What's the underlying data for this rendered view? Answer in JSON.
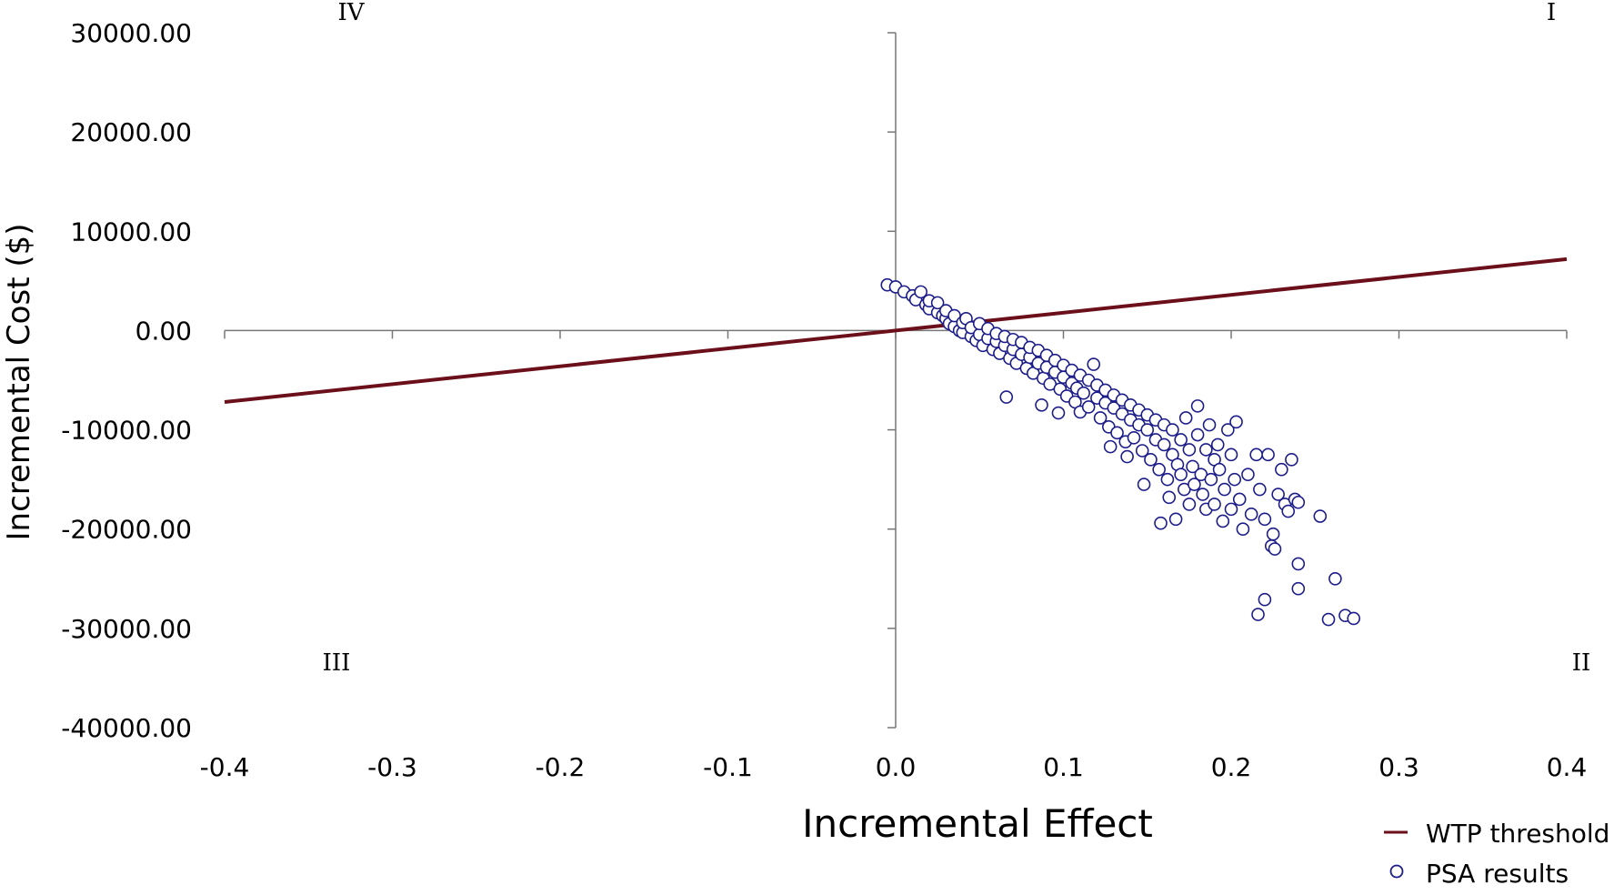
{
  "chart_data": {
    "type": "scatter",
    "xlabel": "Incremental Effect",
    "ylabel": "Incremental Cost ($)",
    "xlim": [
      -0.4,
      0.4
    ],
    "ylim": [
      -40000,
      30000
    ],
    "x_ticks": [
      "-0.4",
      "-0.3",
      "-0.2",
      "-0.1",
      "0.0",
      "0.1",
      "0.2",
      "0.3",
      "0.4"
    ],
    "x_tick_values": [
      -0.4,
      -0.3,
      -0.2,
      -0.1,
      0.0,
      0.1,
      0.2,
      0.3,
      0.4
    ],
    "y_ticks": [
      "30000.00",
      "20000.00",
      "10000.00",
      "0.00",
      "-10000.00",
      "-20000.00",
      "-30000.00",
      "-40000.00"
    ],
    "y_tick_values": [
      30000,
      20000,
      10000,
      0,
      -10000,
      -20000,
      -30000,
      -40000
    ],
    "grid": false,
    "quadrant_labels": [
      {
        "text": "I",
        "corner": "top-right"
      },
      {
        "text": "II",
        "corner": "bottom-right"
      },
      {
        "text": "III",
        "corner": "bottom-left"
      },
      {
        "text": "IV",
        "corner": "top-left"
      }
    ],
    "legend_position": "bottom-right",
    "series": [
      {
        "name": "WTP threshold",
        "type": "line",
        "color": "#6b0f1a",
        "points": [
          [
            -0.4,
            -7200
          ],
          [
            0.4,
            7200
          ]
        ]
      },
      {
        "name": "PSA results",
        "type": "scatter",
        "color": "#1c1c8a",
        "points": [
          [
            -0.005,
            4600
          ],
          [
            0.0,
            4400
          ],
          [
            0.005,
            3900
          ],
          [
            0.01,
            3500
          ],
          [
            0.012,
            3100
          ],
          [
            0.015,
            3900
          ],
          [
            0.018,
            2600
          ],
          [
            0.02,
            2200
          ],
          [
            0.02,
            3000
          ],
          [
            0.025,
            1800
          ],
          [
            0.025,
            2800
          ],
          [
            0.028,
            1500
          ],
          [
            0.03,
            1200
          ],
          [
            0.03,
            2000
          ],
          [
            0.032,
            700
          ],
          [
            0.035,
            400
          ],
          [
            0.035,
            1500
          ],
          [
            0.038,
            0
          ],
          [
            0.04,
            -200
          ],
          [
            0.04,
            800
          ],
          [
            0.042,
            1200
          ],
          [
            0.045,
            -600
          ],
          [
            0.045,
            300
          ],
          [
            0.048,
            -1000
          ],
          [
            0.05,
            -400
          ],
          [
            0.05,
            700
          ],
          [
            0.052,
            -1500
          ],
          [
            0.055,
            -800
          ],
          [
            0.055,
            200
          ],
          [
            0.058,
            -1900
          ],
          [
            0.06,
            -1100
          ],
          [
            0.06,
            -300
          ],
          [
            0.062,
            -2300
          ],
          [
            0.065,
            -1500
          ],
          [
            0.065,
            -600
          ],
          [
            0.066,
            -6700
          ],
          [
            0.068,
            -2800
          ],
          [
            0.07,
            -1900
          ],
          [
            0.07,
            -900
          ],
          [
            0.072,
            -3300
          ],
          [
            0.075,
            -2400
          ],
          [
            0.075,
            -1200
          ],
          [
            0.078,
            -3800
          ],
          [
            0.08,
            -2700
          ],
          [
            0.08,
            -1700
          ],
          [
            0.082,
            -4300
          ],
          [
            0.085,
            -3300
          ],
          [
            0.085,
            -2000
          ],
          [
            0.087,
            -7500
          ],
          [
            0.088,
            -4800
          ],
          [
            0.09,
            -3700
          ],
          [
            0.09,
            -2500
          ],
          [
            0.092,
            -5400
          ],
          [
            0.095,
            -4200
          ],
          [
            0.095,
            -3000
          ],
          [
            0.097,
            -8300
          ],
          [
            0.098,
            -5900
          ],
          [
            0.1,
            -4700
          ],
          [
            0.1,
            -3500
          ],
          [
            0.102,
            -6600
          ],
          [
            0.105,
            -5300
          ],
          [
            0.105,
            -4000
          ],
          [
            0.107,
            -7200
          ],
          [
            0.108,
            -5800
          ],
          [
            0.11,
            -4500
          ],
          [
            0.11,
            -8200
          ],
          [
            0.112,
            -6300
          ],
          [
            0.115,
            -5000
          ],
          [
            0.115,
            -7700
          ],
          [
            0.118,
            -3400
          ],
          [
            0.12,
            -6800
          ],
          [
            0.12,
            -5500
          ],
          [
            0.122,
            -8800
          ],
          [
            0.125,
            -7300
          ],
          [
            0.125,
            -6000
          ],
          [
            0.127,
            -9700
          ],
          [
            0.128,
            -11700
          ],
          [
            0.13,
            -7800
          ],
          [
            0.13,
            -6500
          ],
          [
            0.132,
            -10300
          ],
          [
            0.135,
            -8400
          ],
          [
            0.135,
            -7000
          ],
          [
            0.137,
            -11200
          ],
          [
            0.138,
            -12700
          ],
          [
            0.14,
            -9000
          ],
          [
            0.14,
            -7500
          ],
          [
            0.142,
            -10800
          ],
          [
            0.145,
            -9500
          ],
          [
            0.145,
            -8000
          ],
          [
            0.147,
            -12100
          ],
          [
            0.148,
            -15500
          ],
          [
            0.15,
            -10000
          ],
          [
            0.15,
            -8500
          ],
          [
            0.152,
            -13000
          ],
          [
            0.155,
            -11000
          ],
          [
            0.155,
            -9000
          ],
          [
            0.157,
            -14000
          ],
          [
            0.158,
            -19400
          ],
          [
            0.16,
            -11500
          ],
          [
            0.16,
            -9500
          ],
          [
            0.162,
            -15000
          ],
          [
            0.163,
            -16800
          ],
          [
            0.165,
            -12500
          ],
          [
            0.165,
            -10000
          ],
          [
            0.167,
            -19000
          ],
          [
            0.168,
            -13500
          ],
          [
            0.17,
            -11000
          ],
          [
            0.17,
            -14500
          ],
          [
            0.172,
            -16000
          ],
          [
            0.173,
            -8800
          ],
          [
            0.175,
            -12000
          ],
          [
            0.175,
            -17500
          ],
          [
            0.177,
            -13700
          ],
          [
            0.178,
            -15500
          ],
          [
            0.18,
            -10500
          ],
          [
            0.18,
            -7600
          ],
          [
            0.182,
            -14500
          ],
          [
            0.183,
            -16500
          ],
          [
            0.185,
            -12000
          ],
          [
            0.185,
            -18000
          ],
          [
            0.187,
            -9500
          ],
          [
            0.188,
            -15000
          ],
          [
            0.19,
            -13000
          ],
          [
            0.19,
            -17500
          ],
          [
            0.192,
            -11500
          ],
          [
            0.193,
            -14000
          ],
          [
            0.195,
            -19200
          ],
          [
            0.196,
            -16000
          ],
          [
            0.198,
            -10000
          ],
          [
            0.2,
            -18000
          ],
          [
            0.2,
            -12500
          ],
          [
            0.202,
            -15000
          ],
          [
            0.203,
            -9200
          ],
          [
            0.205,
            -17000
          ],
          [
            0.207,
            -20000
          ],
          [
            0.21,
            -14500
          ],
          [
            0.212,
            -18500
          ],
          [
            0.215,
            -12500
          ],
          [
            0.217,
            -16000
          ],
          [
            0.22,
            -19000
          ],
          [
            0.222,
            -12500
          ],
          [
            0.224,
            -21700
          ],
          [
            0.225,
            -20500
          ],
          [
            0.226,
            -22000
          ],
          [
            0.228,
            -16500
          ],
          [
            0.23,
            -14000
          ],
          [
            0.232,
            -17500
          ],
          [
            0.234,
            -18200
          ],
          [
            0.236,
            -13000
          ],
          [
            0.238,
            -17000
          ],
          [
            0.24,
            -23500
          ],
          [
            0.24,
            -26000
          ],
          [
            0.24,
            -17300
          ],
          [
            0.253,
            -18700
          ],
          [
            0.258,
            -29100
          ],
          [
            0.262,
            -25000
          ],
          [
            0.268,
            -28700
          ],
          [
            0.273,
            -29000
          ],
          [
            0.22,
            -27100
          ],
          [
            0.216,
            -28600
          ]
        ]
      }
    ]
  }
}
